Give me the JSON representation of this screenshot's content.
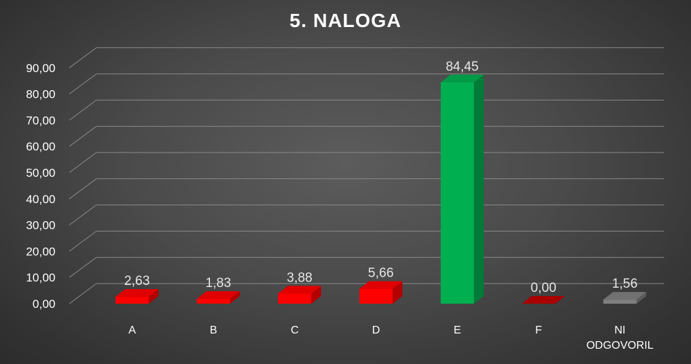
{
  "chart_data": {
    "type": "bar",
    "title": "5. NALOGA",
    "categories": [
      "A",
      "B",
      "C",
      "D",
      "E",
      "F",
      "NI ODGOVORIL"
    ],
    "values": [
      2.63,
      1.83,
      3.88,
      5.66,
      84.45,
      0.0,
      1.56
    ],
    "data_labels": [
      "2,63",
      "1,83",
      "3,88",
      "5,66",
      "84,45",
      "0,00",
      "1,56"
    ],
    "y_ticks": [
      "0,00",
      "10,00",
      "20,00",
      "30,00",
      "40,00",
      "50,00",
      "60,00",
      "70,00",
      "80,00",
      "90,00"
    ],
    "ylim": [
      0,
      90
    ],
    "grid": true,
    "legend": "none",
    "bar_colors": [
      "#ff0000",
      "#ff0000",
      "#ff0000",
      "#ff0000",
      "#00b050",
      "#c00000",
      "#808080"
    ],
    "style_3d": true
  }
}
